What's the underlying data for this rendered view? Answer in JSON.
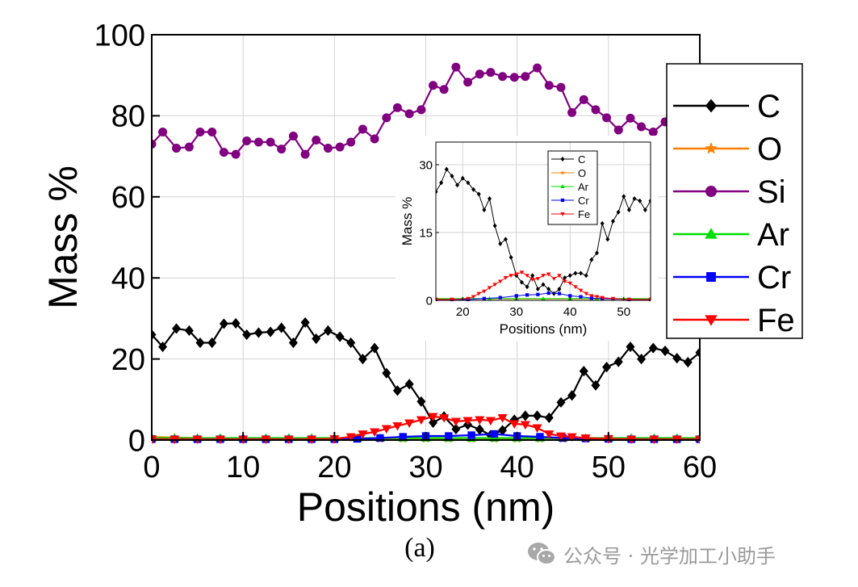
{
  "chart_data": [
    {
      "type": "line",
      "xlabel": "Positions (nm)",
      "ylabel": "Mass %",
      "xlim": [
        0,
        60
      ],
      "ylim": [
        0,
        100
      ],
      "xticks": [
        0,
        10,
        20,
        30,
        40,
        50,
        60
      ],
      "yticks": [
        0,
        20,
        40,
        60,
        80,
        100
      ],
      "grid": true,
      "legend_position": "right",
      "series": [
        {
          "name": "C",
          "color": "#000000",
          "marker": "diamond",
          "x": [
            0,
            1.2,
            2.7,
            4.1,
            5.3,
            6.6,
            7.9,
            9.2,
            10.4,
            11.7,
            13,
            14.2,
            15.5,
            16.8,
            18,
            19.3,
            20.6,
            21.8,
            23.1,
            24.4,
            25.7,
            26.9,
            28.2,
            29.5,
            30.8,
            32,
            33.3,
            34.6,
            35.9,
            37.1,
            38.4,
            39.7,
            40.9,
            42.2,
            43.5,
            44.8,
            46,
            47.3,
            48.6,
            49.8,
            51.1,
            52.4,
            53.6,
            54.9,
            56.2,
            57.5,
            58.7,
            60
          ],
          "values": [
            26,
            23,
            27.5,
            27,
            24,
            24,
            28.7,
            28.8,
            26,
            26.5,
            26.7,
            27.7,
            24,
            29,
            25,
            27,
            25.5,
            24,
            20,
            22.7,
            16.5,
            12.2,
            13.8,
            9.5,
            4.3,
            5.8,
            2.7,
            3.8,
            2.6,
            1.2,
            2.4,
            5,
            6,
            6,
            5.5,
            9.3,
            11,
            17,
            13.5,
            18,
            19.3,
            23,
            20,
            22.7,
            22,
            20.2,
            19.2,
            21.6
          ]
        },
        {
          "name": "O",
          "color": "#ff8000",
          "marker": "star",
          "x": [
            0,
            2.5,
            5,
            7.5,
            10,
            12.5,
            15,
            17.5,
            20,
            22.5,
            25,
            27.5,
            30,
            32.5,
            35,
            37.5,
            40,
            42.5,
            45,
            47.5,
            50,
            52.5,
            55,
            57.5,
            60
          ],
          "values": [
            0.8,
            0.6,
            0.5,
            0.4,
            0.3,
            0.3,
            0.3,
            0.3,
            0.3,
            0.3,
            0.3,
            0.3,
            0.3,
            0.3,
            0.3,
            0.3,
            0.3,
            0.3,
            0.3,
            0.3,
            0.3,
            0.3,
            0.3,
            0.3,
            0.3
          ]
        },
        {
          "name": "Si",
          "color": "#800080",
          "marker": "circle",
          "x": [
            0,
            1.2,
            2.7,
            4.1,
            5.3,
            6.6,
            7.9,
            9.2,
            10.4,
            11.7,
            13,
            14.2,
            15.5,
            16.8,
            18,
            19.3,
            20.6,
            21.8,
            23.1,
            24.4,
            25.7,
            26.9,
            28.2,
            29.5,
            30.8,
            32,
            33.3,
            34.6,
            35.9,
            37.1,
            38.4,
            39.7,
            40.9,
            42.2,
            43.5,
            44.8,
            46,
            47.3,
            48.6,
            49.8,
            51.1,
            52.4,
            53.6,
            54.9,
            56.2,
            57.5,
            58.7,
            60
          ],
          "values": [
            73,
            76,
            72,
            72.3,
            76,
            76,
            71,
            70.5,
            73.8,
            73.5,
            73.5,
            71.8,
            75,
            70.5,
            74,
            72,
            72.3,
            73.5,
            76.7,
            74.3,
            79.5,
            82,
            80.5,
            81.5,
            87.5,
            86.5,
            92,
            88.3,
            90.3,
            90.7,
            89.7,
            89.5,
            89.7,
            91.8,
            87.5,
            87,
            80.8,
            84,
            81.5,
            79.5,
            76.5,
            79.4,
            77.3,
            76,
            78.5,
            80.5,
            80.8,
            78
          ]
        },
        {
          "name": "Ar",
          "color": "#00dd00",
          "marker": "triangle-up",
          "x": [
            0,
            2.5,
            5,
            7.5,
            10,
            12.5,
            15,
            17.5,
            20,
            22.5,
            25,
            27.5,
            30,
            32.5,
            35,
            37.5,
            40,
            42.5,
            45,
            47.5,
            50,
            52.5,
            55,
            57.5,
            60
          ],
          "values": [
            0.5,
            0.5,
            0.5,
            0.5,
            0.5,
            0.5,
            0.5,
            0.5,
            0.5,
            0.5,
            0.5,
            0.5,
            0.5,
            0.5,
            0.5,
            0.5,
            0.5,
            0.5,
            0.5,
            0.5,
            0.5,
            0.5,
            0.5,
            0.5,
            0.5
          ]
        },
        {
          "name": "Cr",
          "color": "#0000ff",
          "marker": "square",
          "x": [
            0,
            2.5,
            5,
            7.5,
            10,
            12.5,
            15,
            17.5,
            20,
            22.5,
            25,
            27.5,
            30,
            32.5,
            35,
            37.5,
            40,
            42.5,
            45,
            47.5,
            50,
            52.5,
            55,
            57.5,
            60
          ],
          "values": [
            0.2,
            0.2,
            0.2,
            0.2,
            0.2,
            0.2,
            0.2,
            0.2,
            0.2,
            0.3,
            0.5,
            0.8,
            1,
            1,
            1.2,
            1.5,
            1,
            0.8,
            0.5,
            0.4,
            0.3,
            0.2,
            0.2,
            0.2,
            0.2
          ]
        },
        {
          "name": "Fe",
          "color": "#ff0000",
          "marker": "triangle-down",
          "x": [
            0,
            2.5,
            5,
            7.5,
            10,
            12.5,
            15,
            17.5,
            20,
            21.8,
            23.1,
            24.4,
            25.7,
            26.9,
            28.2,
            29.5,
            30.8,
            32,
            33.3,
            34.6,
            35.9,
            37.1,
            38.4,
            39.7,
            40.9,
            42.2,
            43.5,
            44.8,
            46,
            47.5,
            50,
            52.5,
            55,
            57.5,
            60
          ],
          "values": [
            0.2,
            0.2,
            0.2,
            0.2,
            0.2,
            0.2,
            0.2,
            0.2,
            0.3,
            0.8,
            1.5,
            2,
            2.8,
            3.5,
            4.2,
            5,
            5.8,
            5.5,
            4.6,
            4.8,
            5,
            4.8,
            5.5,
            4,
            3.8,
            3,
            1.5,
            1,
            0.8,
            0.5,
            0.3,
            0.2,
            0.2,
            0.2,
            0.2
          ]
        }
      ]
    },
    {
      "type": "line",
      "xlabel": "Positions (nm)",
      "ylabel": "Mass %",
      "xlim": [
        15,
        55
      ],
      "ylim": [
        0,
        35
      ],
      "xticks": [
        20,
        30,
        40,
        50
      ],
      "yticks": [
        0,
        15,
        30
      ],
      "grid": true,
      "legend_position": "top",
      "series": [
        {
          "name": "C",
          "color": "#000000",
          "marker": "diamond",
          "x": [
            15,
            16,
            17,
            18,
            19,
            20,
            21,
            22,
            23,
            24,
            25,
            26,
            27,
            28,
            29,
            30,
            31,
            32,
            33,
            34,
            35,
            36,
            37,
            38,
            39,
            40,
            41,
            42,
            43,
            44,
            45,
            46,
            47,
            48,
            49,
            50,
            51,
            52,
            53,
            54,
            55
          ],
          "values": [
            24,
            26,
            29,
            27.5,
            25.5,
            27,
            26,
            24.5,
            23.5,
            20,
            22.5,
            16.5,
            12.5,
            13.5,
            9.5,
            5.5,
            4,
            3,
            5.5,
            2.5,
            3.5,
            2.5,
            1.5,
            2.5,
            5,
            5.5,
            6,
            6,
            5.5,
            9,
            10.5,
            17,
            13.5,
            17.5,
            19.5,
            23,
            20,
            22.5,
            22,
            20,
            22
          ]
        },
        {
          "name": "O",
          "color": "#ff8000",
          "marker": "star",
          "x": [
            15,
            20,
            25,
            30,
            35,
            40,
            45,
            50,
            55
          ],
          "values": [
            0.3,
            0.3,
            0.3,
            0.3,
            0.3,
            0.3,
            0.3,
            0.3,
            0.3
          ]
        },
        {
          "name": "Ar",
          "color": "#00dd00",
          "marker": "triangle-up",
          "x": [
            15,
            20,
            25,
            30,
            35,
            40,
            45,
            50,
            55
          ],
          "values": [
            0.4,
            0.4,
            0.4,
            0.4,
            0.4,
            0.4,
            0.4,
            0.4,
            0.4
          ]
        },
        {
          "name": "Cr",
          "color": "#0000ff",
          "marker": "square",
          "x": [
            15,
            18,
            21,
            24,
            27,
            30,
            32,
            34,
            36,
            38,
            40,
            42,
            44,
            46,
            48,
            51,
            55
          ],
          "values": [
            0.2,
            0.2,
            0.2,
            0.4,
            0.6,
            1,
            1.2,
            1.3,
            1.6,
            1.5,
            1,
            0.8,
            0.5,
            0.4,
            0.3,
            0.2,
            0.2
          ]
        },
        {
          "name": "Fe",
          "color": "#ff0000",
          "marker": "triangle-down",
          "x": [
            15,
            18,
            21,
            22,
            23,
            24,
            25,
            26,
            27,
            28,
            29,
            30,
            31,
            32,
            33,
            34,
            35,
            36,
            37,
            38,
            39,
            40,
            41,
            42,
            43,
            44,
            45,
            46,
            48,
            51,
            55
          ],
          "values": [
            0.2,
            0.2,
            0.4,
            0.8,
            1.5,
            2,
            2.8,
            3.5,
            4.2,
            5,
            5.5,
            5.8,
            6.2,
            5.5,
            4.6,
            4.8,
            5.5,
            5.8,
            4.8,
            5.5,
            4.2,
            3.8,
            3,
            2.2,
            1.5,
            1,
            0.8,
            0.6,
            0.4,
            0.2,
            0.2
          ]
        }
      ]
    }
  ],
  "caption": "(a)",
  "watermark": {
    "text": "公众号 · 光学加工小助手",
    "icon": "wechat-icon"
  }
}
